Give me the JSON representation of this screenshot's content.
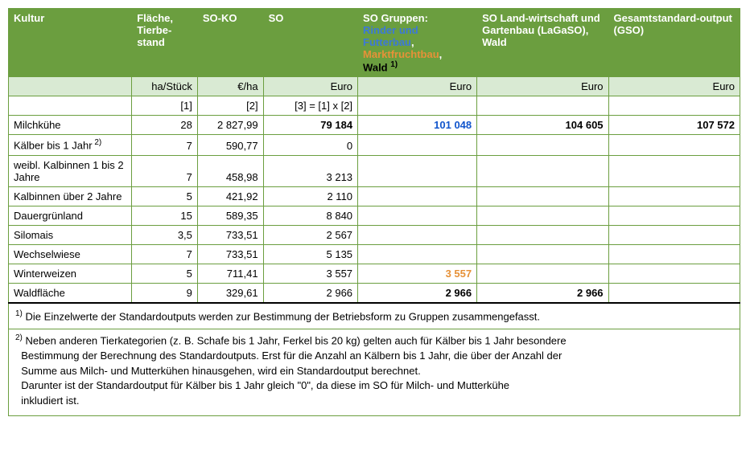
{
  "colors": {
    "header_bg": "#6b9e3f",
    "unit_bg": "#d9ead3",
    "border": "#6b9e3f",
    "blue": "#1155cc",
    "orange": "#e69138"
  },
  "headers": {
    "kultur": "Kultur",
    "flaeche": "Fläche, Tierbe-stand",
    "soko": "SO-KO",
    "so": "SO",
    "gruppen_label": "SO Gruppen:",
    "gruppen_rinder": "Rinder und Futterbau",
    "gruppen_markt": "Marktfruchtbau",
    "gruppen_wald": "Wald",
    "gruppen_sup": "1)",
    "lagaso": "SO Land-wirtschaft und Gartenbau (LaGaSO), Wald",
    "gso": "Gesamtstandard-output (GSO)"
  },
  "units": {
    "flaeche": "ha/Stück",
    "soko": "€/ha",
    "so": "Euro",
    "gruppen": "Euro",
    "lagaso": "Euro",
    "gso": "Euro"
  },
  "formula": {
    "flaeche": "[1]",
    "soko": "[2]",
    "so": "[3] = [1] x [2]"
  },
  "rows": [
    {
      "kultur": "Milchkühe",
      "flaeche": "28",
      "soko": "2 827,99",
      "so": "79 184",
      "gruppen": "101 048",
      "gruppen_color": "blue",
      "lagaso": "104 605",
      "gso": "107 572",
      "bold": true
    },
    {
      "kultur": "Kälber bis 1 Jahr",
      "sup": "2)",
      "flaeche": "7",
      "soko": "590,77",
      "so": "0",
      "gruppen": "",
      "lagaso": "",
      "gso": ""
    },
    {
      "kultur": "weibl. Kalbinnen 1 bis 2 Jahre",
      "flaeche": "7",
      "soko": "458,98",
      "so": "3 213",
      "gruppen": "",
      "lagaso": "",
      "gso": ""
    },
    {
      "kultur": "Kalbinnen über 2 Jahre",
      "flaeche": "5",
      "soko": "421,92",
      "so": "2 110",
      "gruppen": "",
      "lagaso": "",
      "gso": ""
    },
    {
      "kultur": "Dauergrünland",
      "flaeche": "15",
      "soko": "589,35",
      "so": "8 840",
      "gruppen": "",
      "lagaso": "",
      "gso": ""
    },
    {
      "kultur": "Silomais",
      "flaeche": "3,5",
      "soko": "733,51",
      "so": "2 567",
      "gruppen": "",
      "lagaso": "",
      "gso": ""
    },
    {
      "kultur": "Wechselwiese",
      "flaeche": "7",
      "soko": "733,51",
      "so": "5 135",
      "gruppen": "",
      "lagaso": "",
      "gso": ""
    },
    {
      "kultur": "Winterweizen",
      "flaeche": "5",
      "soko": "711,41",
      "so": "3 557",
      "gruppen": "3 557",
      "gruppen_color": "orange",
      "lagaso": "",
      "gso": "",
      "bold_gruppen": true
    },
    {
      "kultur": "Waldfläche",
      "flaeche": "9",
      "soko": "329,61",
      "so": "2 966",
      "gruppen": "2 966",
      "lagaso": "2 966",
      "gso": "",
      "bold_gruppen": true,
      "bold_lagaso": true
    }
  ],
  "footnote1_sup": "1)",
  "footnote1": "Die Einzelwerte der Standardoutputs werden zur Bestimmung der Betriebsform zu Gruppen zusammengefasst.",
  "footnote2_sup": "2)",
  "footnote2_l1": "Neben anderen Tierkategorien (z. B. Schafe bis 1 Jahr, Ferkel bis 20 kg) gelten auch für Kälber bis 1 Jahr besondere",
  "footnote2_l2": "Bestimmung der Berechnung des Standardoutputs. Erst für die Anzahl an Kälbern bis 1 Jahr, die über der Anzahl der",
  "footnote2_l3": "Summe aus Milch- und Mutterkühen hinausgehen, wird ein Standardoutput berechnet.",
  "footnote2_l4": "Darunter ist der Standardoutput für Kälber bis 1 Jahr gleich \"0\", da diese im SO für Milch- und Mutterkühe",
  "footnote2_l5": "inkludiert ist."
}
